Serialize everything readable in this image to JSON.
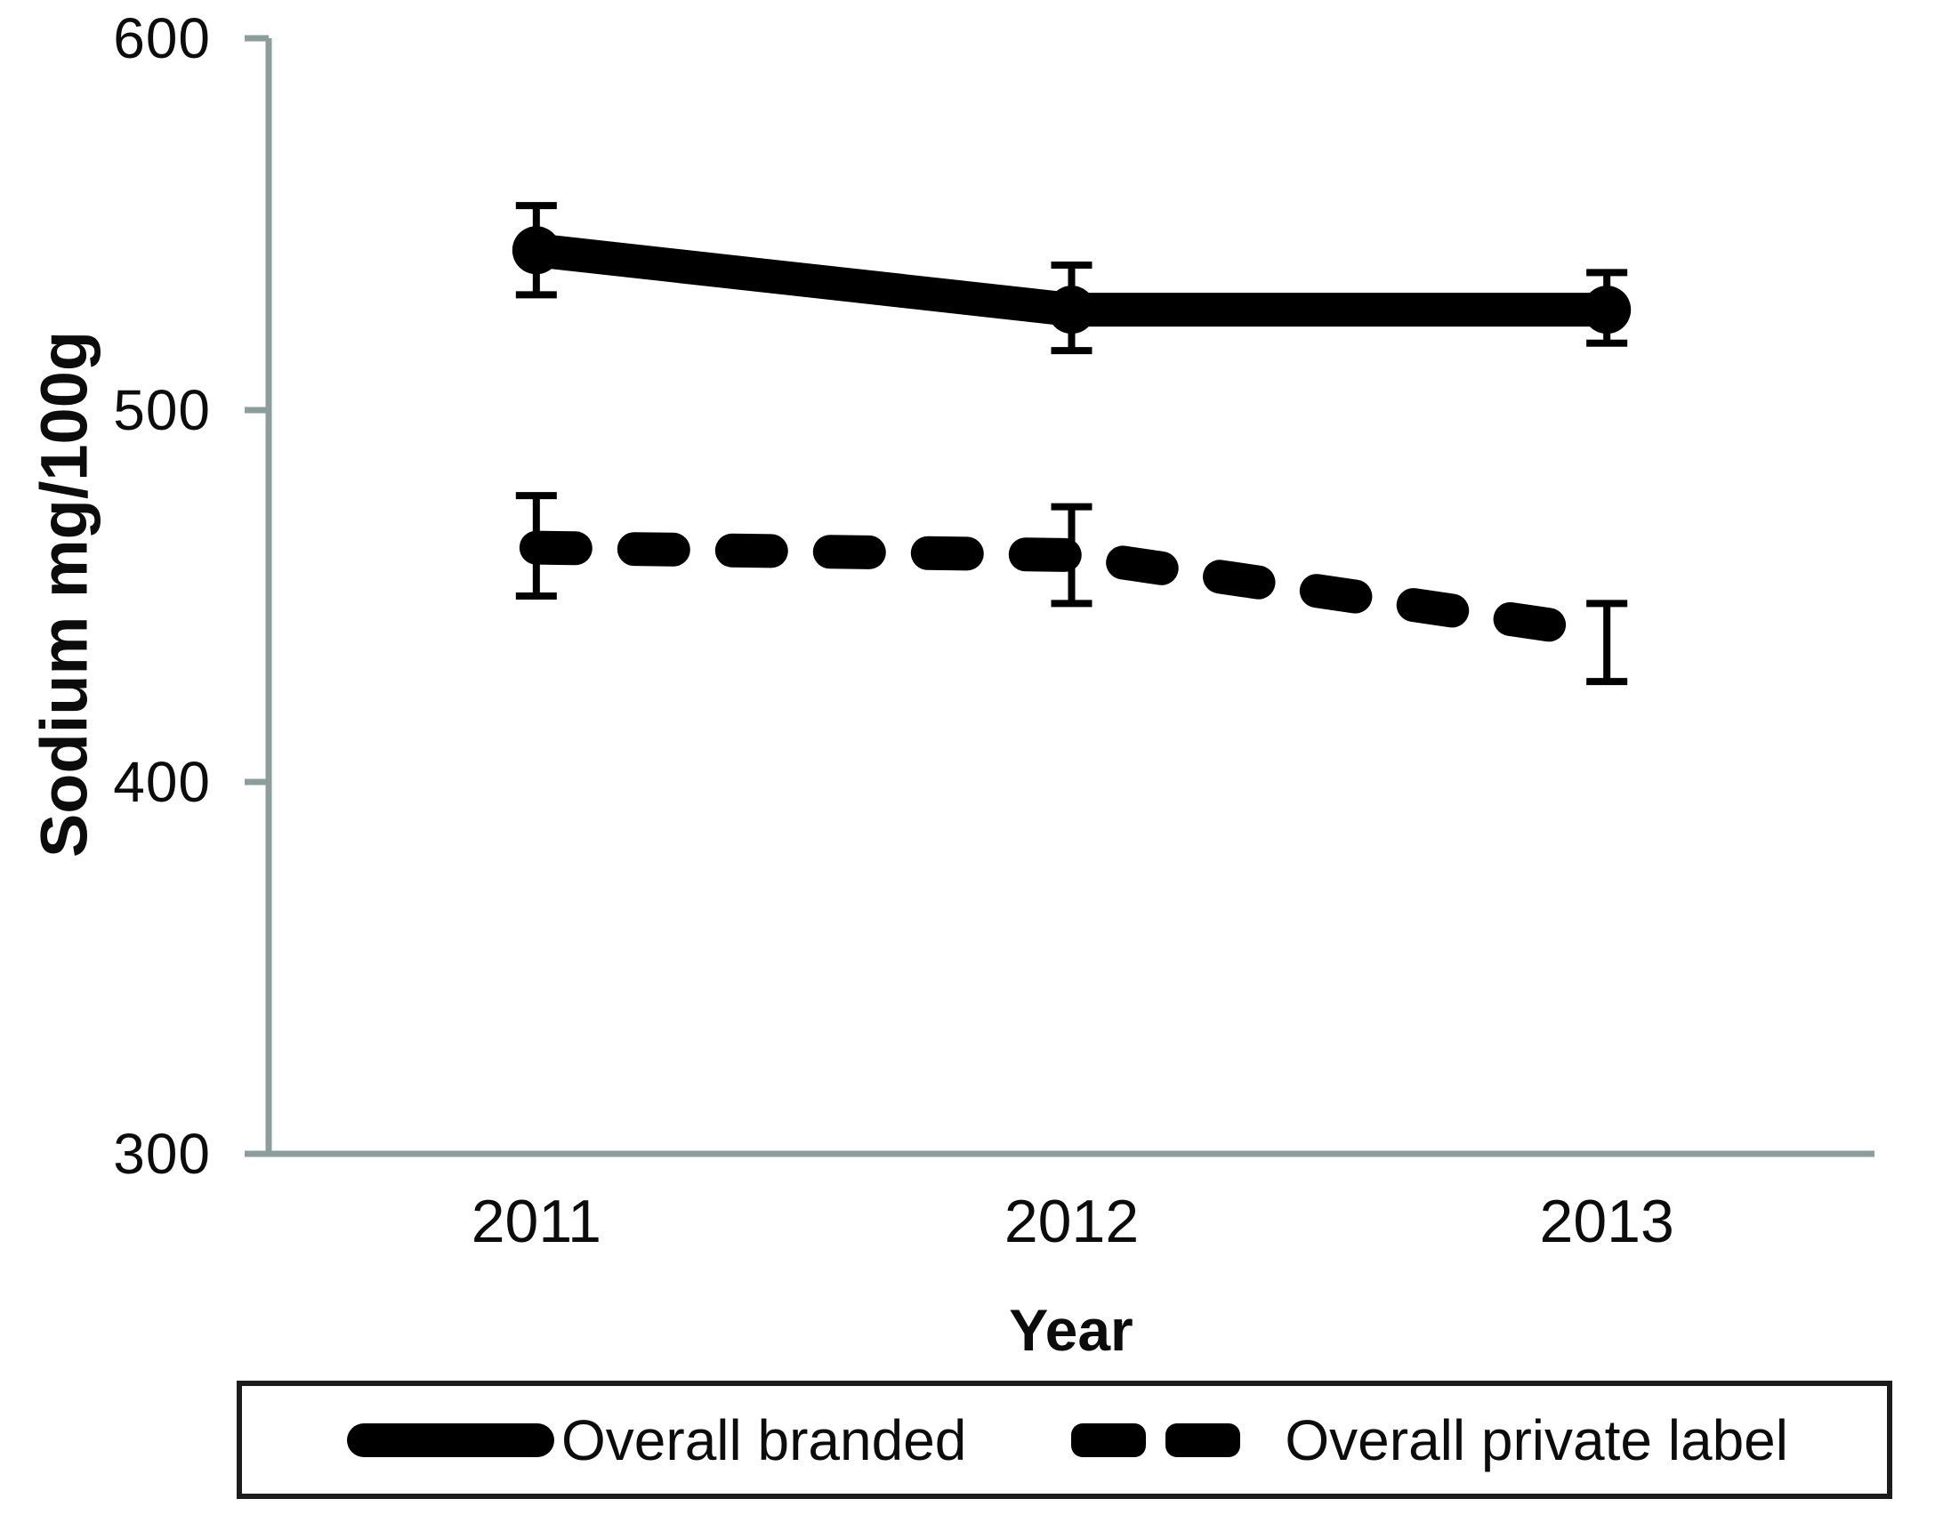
{
  "chart_data": {
    "type": "line",
    "title": "",
    "xlabel": "Year",
    "ylabel": "Sodium mg/100g",
    "categories": [
      "2011",
      "2012",
      "2013"
    ],
    "ylim": [
      300,
      600
    ],
    "yticks": [
      600,
      500,
      400,
      300
    ],
    "ytick_labels": [
      "600",
      "500",
      "400",
      "300"
    ],
    "grid": false,
    "legend_position": "bottom-box",
    "error_bars": true,
    "series": [
      {
        "name": "Overall branded",
        "style": "solid",
        "values": [
          543,
          527,
          527
        ],
        "error_low": [
          531,
          516,
          518
        ],
        "error_high": [
          555,
          539,
          537
        ]
      },
      {
        "name": "Overall private label",
        "style": "dashed",
        "values": [
          463,
          461,
          440
        ],
        "error_low": [
          450,
          448,
          427
        ],
        "error_high": [
          477,
          474,
          448
        ]
      }
    ],
    "colors": {
      "series": "#000000",
      "axis": "#8c9e9c"
    }
  }
}
